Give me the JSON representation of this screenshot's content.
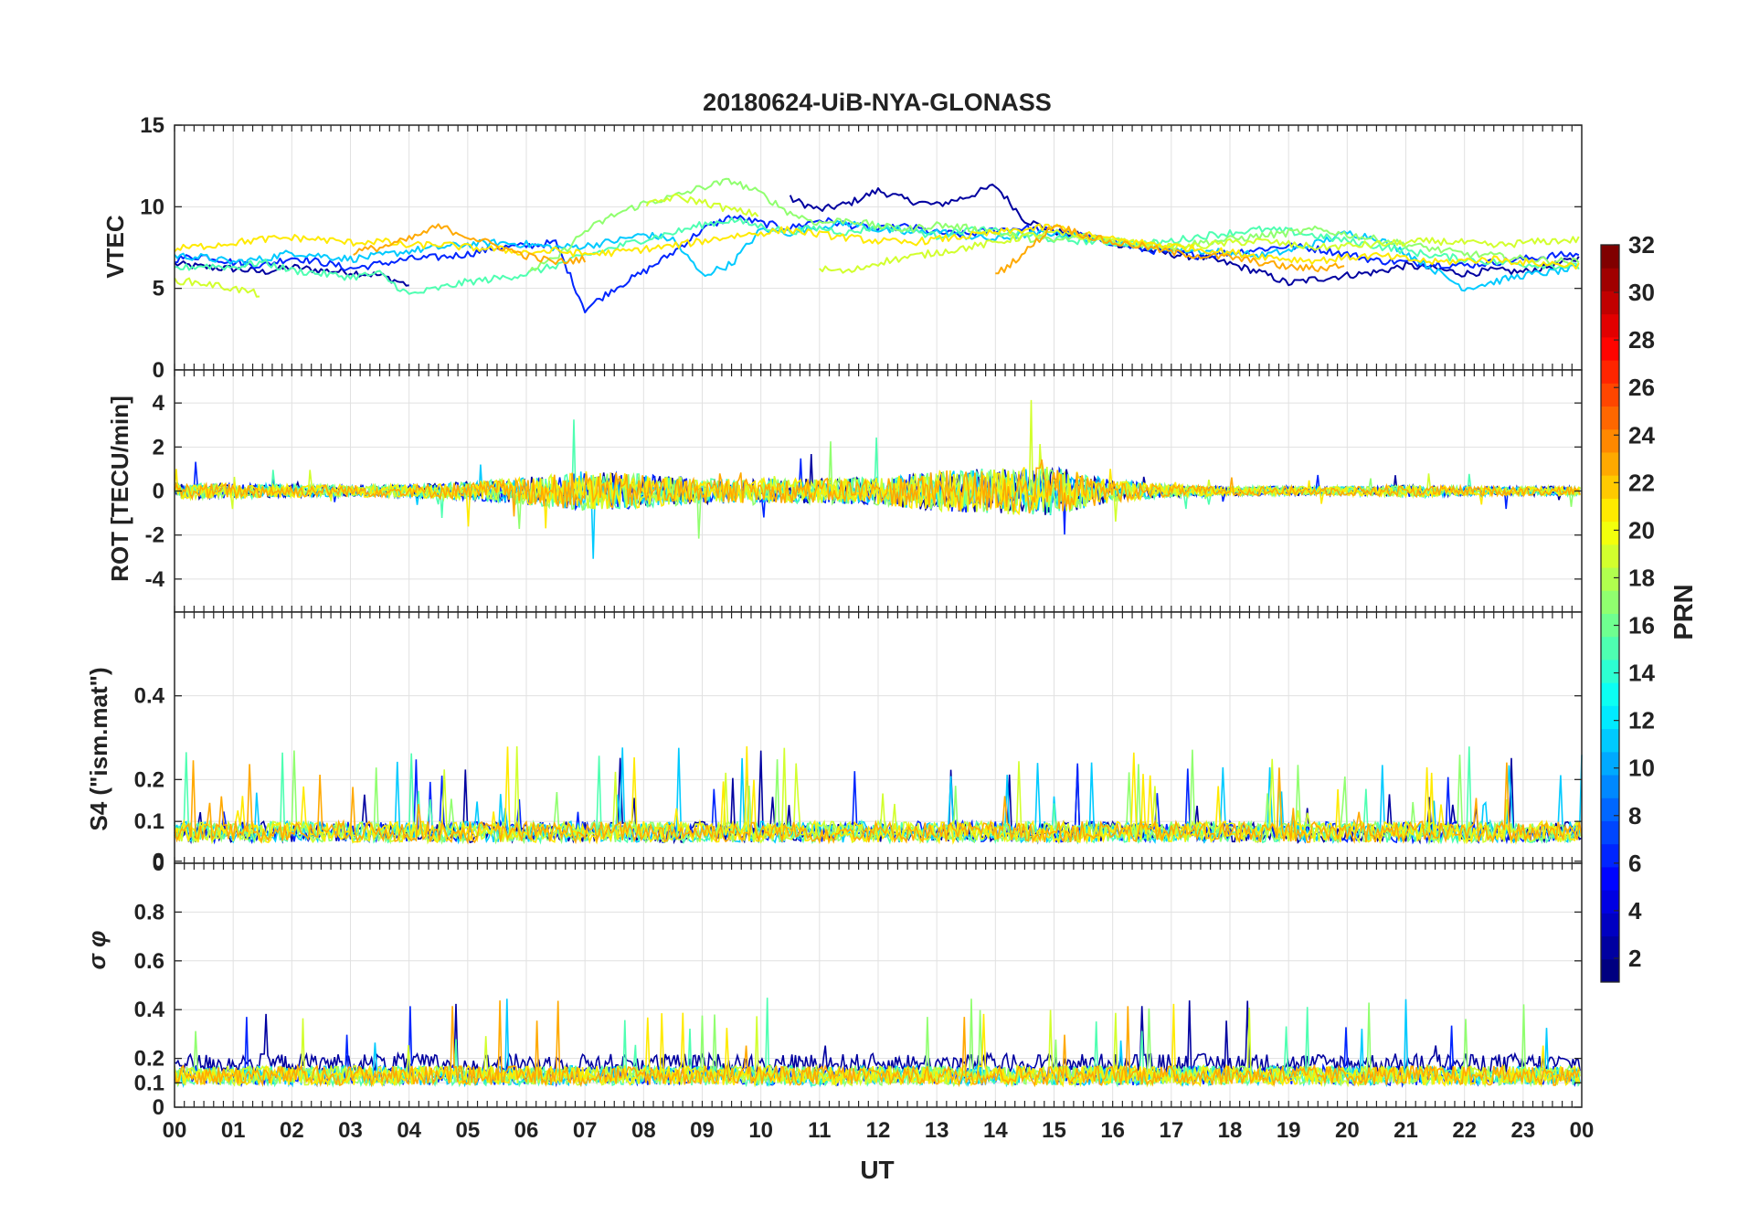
{
  "chart_data": {
    "type": "line",
    "title": "20180624-UiB-NYA-GLONASS",
    "xlabel": "UT",
    "xlim": [
      0,
      24
    ],
    "x_ticks": [
      "00",
      "01",
      "02",
      "03",
      "04",
      "05",
      "06",
      "07",
      "08",
      "09",
      "10",
      "11",
      "12",
      "13",
      "14",
      "15",
      "16",
      "17",
      "18",
      "19",
      "20",
      "21",
      "22",
      "23",
      "00"
    ],
    "colorbar": {
      "label": "PRN",
      "clim": [
        1,
        32
      ],
      "ticks": [
        "2",
        "4",
        "6",
        "8",
        "10",
        "12",
        "14",
        "16",
        "18",
        "20",
        "22",
        "24",
        "26",
        "28",
        "30",
        "32"
      ],
      "colormap": "jet"
    },
    "panels": [
      {
        "name": "vtec",
        "ylabel": "VTEC",
        "ylim": [
          0,
          15
        ],
        "yticks": [
          "0",
          "5",
          "10",
          "15"
        ],
        "series": [
          {
            "prn": 2,
            "x": [
              0,
              0.5,
              1,
              1.5,
              2,
              2.5,
              3,
              3.5,
              4,
              4.5,
              5,
              5.5,
              6,
              6.5,
              7,
              7.5,
              8,
              8.5,
              9,
              9.5,
              10,
              10.5,
              11,
              11.5,
              12,
              12.5,
              13,
              13.5,
              14,
              14.5,
              15,
              15.5,
              16,
              16.5,
              17,
              17.5,
              18,
              18.5,
              19,
              19.5,
              20,
              20.5,
              21,
              21.5,
              22,
              22.5,
              23,
              23.5,
              24
            ],
            "y": [
              6.5,
              6.3,
              6.2,
              6.0,
              6.3,
              6.1,
              6.0,
              5.8,
              5.2,
              null,
              null,
              null,
              null,
              null,
              null,
              null,
              null,
              null,
              null,
              null,
              null,
              10.5,
              9.8,
              10.2,
              11.0,
              10.4,
              10.1,
              10.6,
              11.3,
              9.2,
              8.5,
              8.2,
              7.8,
              7.4,
              7.1,
              6.9,
              6.5,
              6.0,
              5.3,
              5.6,
              5.8,
              6.0,
              6.4,
              6.2,
              5.9,
              6.1,
              6.0,
              6.4,
              6.9
            ]
          },
          {
            "prn": 6,
            "x": [
              0,
              0.5,
              1,
              1.5,
              2,
              2.5,
              3,
              3.5,
              4,
              4.5,
              5,
              5.5,
              6,
              6.5,
              7,
              7.5,
              8,
              8.5,
              9,
              9.5,
              10,
              10.5,
              11,
              11.5,
              12,
              12.5,
              13,
              13.5,
              14,
              14.5,
              15,
              15.5,
              16,
              16.5,
              17,
              17.5,
              18,
              18.5,
              19,
              19.5,
              20,
              20.5,
              21,
              21.5,
              22,
              22.5,
              23,
              23.5,
              24
            ],
            "y": [
              6.8,
              7.0,
              6.6,
              6.4,
              6.9,
              6.6,
              6.2,
              6.5,
              6.8,
              6.9,
              7.1,
              7.5,
              7.6,
              7.8,
              3.7,
              5.0,
              6.0,
              7.2,
              8.6,
              9.4,
              9.0,
              8.7,
              9.2,
              8.9,
              8.6,
              8.8,
              8.4,
              8.3,
              8.6,
              8.7,
              8.5,
              8.2,
              7.8,
              7.4,
              7.2,
              7.0,
              7.2,
              7.4,
              7.6,
              7.4,
              7.1,
              6.7,
              6.6,
              6.5,
              6.4,
              6.6,
              6.8,
              7.0,
              7.1
            ]
          },
          {
            "prn": 11,
            "x": [
              0,
              0.5,
              1,
              1.5,
              2,
              2.5,
              3,
              3.5,
              4,
              4.5,
              5,
              5.5,
              6,
              6.5,
              7,
              7.5,
              8,
              8.5,
              9,
              9.5,
              10,
              10.5,
              11,
              11.5,
              12,
              12.5,
              13,
              13.5,
              14,
              14.5,
              15,
              15.5,
              16,
              16.5,
              17,
              17.5,
              18,
              18.5,
              19,
              19.5,
              20,
              20.5,
              21,
              21.5,
              22,
              22.5,
              23,
              23.5,
              24
            ],
            "y": [
              7.0,
              6.9,
              6.6,
              6.8,
              7.2,
              7.0,
              6.8,
              7.0,
              7.3,
              7.5,
              7.7,
              7.8,
              7.7,
              7.5,
              7.6,
              7.9,
              8.3,
              8.0,
              5.8,
              6.5,
              8.6,
              8.4,
              8.8,
              9.0,
              8.6,
              8.4,
              8.5,
              8.2,
              8.0,
              8.3,
              8.4,
              8.1,
              7.9,
              7.6,
              7.4,
              7.3,
              7.2,
              7.0,
              7.3,
              7.8,
              8.4,
              8.1,
              7.2,
              6.1,
              5.0,
              5.4,
              5.8,
              6.0,
              6.3
            ]
          },
          {
            "prn": 15,
            "x": [
              0,
              0.5,
              1,
              1.5,
              2,
              2.5,
              3,
              3.5,
              4,
              4.5,
              5,
              5.5,
              6,
              6.5,
              7,
              7.5,
              8,
              8.5,
              9,
              9.5,
              10,
              10.5,
              11,
              11.5,
              12,
              12.5,
              13,
              13.5,
              14,
              14.5,
              15,
              15.5,
              16,
              16.5,
              17,
              17.5,
              18,
              18.5,
              19,
              19.5,
              20,
              20.5,
              21,
              21.5,
              22,
              22.5,
              23,
              23.5,
              24
            ],
            "y": [
              6.2,
              6.4,
              6.3,
              6.6,
              6.1,
              5.9,
              5.7,
              5.9,
              4.6,
              5.0,
              5.4,
              5.6,
              5.9,
              6.4,
              7.0,
              7.5,
              8.0,
              8.4,
              8.9,
              9.2,
              8.8,
              8.5,
              8.7,
              8.4,
              8.8,
              8.6,
              8.2,
              8.6,
              8.5,
              8.3,
              8.0,
              7.9,
              7.8,
              7.7,
              7.9,
              8.2,
              8.4,
              8.6,
              8.5,
              8.2,
              7.9,
              7.6,
              7.3,
              7.0,
              6.8,
              6.6,
              6.5,
              6.4,
              6.3
            ]
          },
          {
            "prn": 17,
            "x": [
              0,
              0.5,
              1,
              1.5,
              2,
              2.5,
              3,
              3.5,
              4,
              4.5,
              5,
              5.5,
              6,
              6.5,
              7,
              7.5,
              8,
              8.5,
              9,
              9.5,
              10,
              10.5,
              11,
              11.5,
              12,
              12.5,
              13,
              13.5,
              14,
              14.5,
              15,
              15.5,
              16,
              16.5,
              17,
              17.5,
              18,
              18.5,
              19,
              19.5,
              20,
              20.5,
              21,
              21.5,
              22,
              22.5,
              23,
              23.5,
              24
            ],
            "y": [
              null,
              null,
              null,
              null,
              null,
              null,
              null,
              null,
              null,
              null,
              null,
              null,
              6.0,
              6.8,
              8.5,
              9.5,
              10.2,
              10.6,
              11.2,
              11.6,
              10.8,
              9.6,
              9.0,
              9.2,
              8.8,
              8.6,
              8.9,
              8.7,
              8.4,
              8.1,
              7.9,
              8.2,
              8.0,
              7.8,
              7.6,
              7.8,
              8.0,
              8.2,
              8.4,
              8.6,
              8.3,
              8.0,
              7.7,
              7.4,
              7.1,
              7.0,
              6.8,
              6.7,
              6.6
            ]
          },
          {
            "prn": 19,
            "x": [
              0,
              0.5,
              1,
              1.5,
              2,
              2.5,
              3,
              3.5,
              4,
              4.5,
              5,
              5.5,
              6,
              6.5,
              7,
              7.5,
              8,
              8.5,
              9,
              9.5,
              10,
              10.5,
              11,
              11.5,
              12,
              12.5,
              13,
              13.5,
              14,
              14.5,
              15,
              15.5,
              16,
              16.5,
              17,
              17.5,
              18,
              18.5,
              19,
              19.5,
              20,
              20.5,
              21,
              21.5,
              22,
              22.5,
              23,
              23.5,
              24
            ],
            "y": [
              5.5,
              5.3,
              5.0,
              4.6,
              null,
              null,
              null,
              null,
              null,
              null,
              null,
              null,
              null,
              null,
              null,
              null,
              10.0,
              10.6,
              10.3,
              9.8,
              9.5,
              null,
              6.2,
              6.0,
              6.6,
              6.9,
              7.2,
              7.5,
              7.8,
              8.2,
              8.4,
              8.1,
              7.9,
              7.7,
              7.5,
              7.6,
              7.8,
              7.9,
              7.7,
              7.5,
              7.6,
              7.7,
              7.8,
              7.9,
              7.8,
              7.6,
              7.8,
              7.9,
              8.0
            ]
          },
          {
            "prn": 21,
            "x": [
              0,
              0.5,
              1,
              1.5,
              2,
              2.5,
              3,
              3.5,
              4,
              4.5,
              5,
              5.5,
              6,
              6.5,
              7,
              7.5,
              8,
              8.5,
              9,
              9.5,
              10,
              10.5,
              11,
              11.5,
              12,
              12.5,
              13,
              13.5,
              14,
              14.5,
              15,
              15.5,
              16,
              16.5,
              17,
              17.5,
              18,
              18.5,
              19,
              19.5,
              20,
              20.5,
              21,
              21.5,
              22,
              22.5,
              23,
              23.5,
              24
            ],
            "y": [
              7.4,
              7.6,
              7.8,
              8.0,
              8.1,
              8.0,
              7.8,
              7.9,
              7.6,
              7.7,
              7.5,
              7.4,
              7.2,
              7.3,
              7.1,
              7.2,
              7.4,
              7.6,
              7.9,
              8.2,
              8.4,
              8.6,
              8.3,
              8.1,
              7.9,
              7.8,
              8.0,
              8.2,
              8.4,
              8.6,
              8.8,
              8.3,
              8.0,
              7.8,
              7.6,
              7.4,
              7.2,
              7.0,
              6.8,
              6.7,
              6.9,
              7.0,
              6.8,
              6.6,
              6.7,
              6.8,
              6.6,
              6.5,
              6.4
            ]
          },
          {
            "prn": 23,
            "x": [
              0,
              0.5,
              1,
              1.5,
              2,
              2.5,
              3,
              3.5,
              4,
              4.5,
              5,
              5.5,
              6,
              6.5,
              7,
              7.5,
              8,
              8.5,
              9,
              9.5,
              10,
              10.5,
              11,
              11.5,
              12,
              12.5,
              13,
              13.5,
              14,
              14.5,
              15,
              15.5,
              16,
              16.5,
              17,
              17.5,
              18,
              18.5,
              19,
              19.5,
              20,
              20.5,
              21,
              21.5,
              22,
              22.5,
              23,
              23.5,
              24
            ],
            "y": [
              null,
              null,
              null,
              null,
              null,
              null,
              7.2,
              7.5,
              8.0,
              8.8,
              8.2,
              7.6,
              7.0,
              6.6,
              6.8,
              null,
              null,
              null,
              null,
              null,
              null,
              null,
              null,
              null,
              null,
              null,
              null,
              null,
              5.8,
              7.2,
              8.9,
              8.3,
              7.8,
              7.6,
              7.2,
              7.0,
              6.9,
              6.6,
              6.3,
              6.2,
              6.5,
              null,
              null,
              null,
              null,
              null,
              null,
              null,
              null
            ]
          }
        ]
      },
      {
        "name": "rot",
        "ylabel": "ROT [TECU/min]",
        "ylim": [
          -5.5,
          5.5
        ],
        "yticks": [
          "-4",
          "-2",
          "0",
          "2",
          "4"
        ],
        "activity": {
          "x": [
            0,
            1,
            2,
            3,
            4,
            5,
            6,
            7,
            8,
            9,
            10,
            11,
            12,
            13,
            14,
            15,
            16,
            17,
            18,
            19,
            20,
            21,
            22,
            23,
            24
          ],
          "amplitude": [
            0.5,
            0.5,
            0.4,
            0.4,
            0.4,
            0.6,
            0.9,
            1.3,
            1.1,
            0.8,
            0.8,
            0.8,
            0.9,
            1.3,
            1.5,
            1.6,
            0.7,
            0.4,
            0.3,
            0.3,
            0.3,
            0.4,
            0.3,
            0.3,
            0.3
          ]
        }
      },
      {
        "name": "s4",
        "ylabel": "S4 (\"ism.mat\")",
        "ylim": [
          0,
          0.6
        ],
        "yticks": [
          "0",
          "0",
          "0.1",
          "0.2",
          "0.4"
        ]
      },
      {
        "name": "sigma_phi",
        "ylabel": "σ φ",
        "ylim": [
          0,
          1
        ],
        "yticks": [
          "0",
          "0.1",
          "0.2",
          "0.4",
          "0.6",
          "0.8"
        ]
      }
    ]
  }
}
